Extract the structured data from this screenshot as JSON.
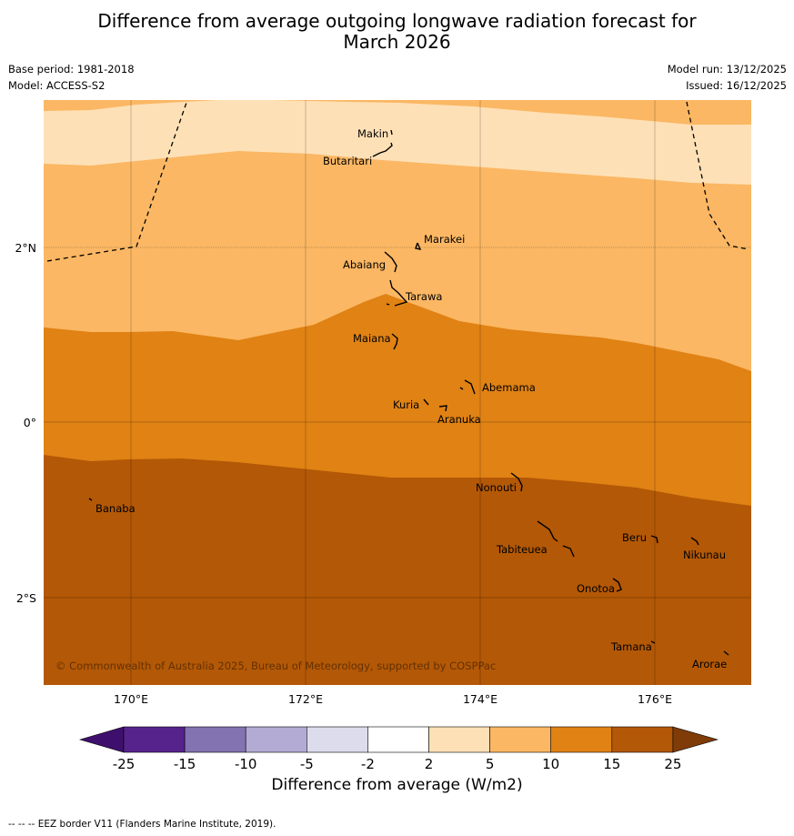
{
  "title_line1": "Difference from average outgoing longwave radiation forecast for",
  "title_line2": "March 2026",
  "base_period": "Base period: 1981-2018",
  "model": "Model: ACCESS-S2",
  "model_run": "Model run: 13/12/2025",
  "issued": "Issued: 16/12/2025",
  "copyright": "© Commonwealth of Australia 2025, Bureau of Meteorology, supported by COSPPac",
  "lon_labels": [
    "170°E",
    "172°E",
    "174°E",
    "176°E"
  ],
  "lat_labels": [
    "2°N",
    "0°",
    "2°S"
  ],
  "islands": [
    "Makin",
    "Butaritari",
    "Marakei",
    "Abaiang",
    "Tarawa",
    "Maiana",
    "Abemama",
    "Kuria",
    "Aranuka",
    "Nonouti",
    "Banaba",
    "Beru",
    "Tabiteuea",
    "Nikunau",
    "Onotoa",
    "Tamana",
    "Arorae"
  ],
  "colorbar": {
    "label": "Difference from average (W/m2)",
    "ticks": [
      "-25",
      "-15",
      "-10",
      "-5",
      "-2",
      "2",
      "5",
      "10",
      "15",
      "25"
    ],
    "colors": [
      "#3f0f6e",
      "#56238d",
      "#8373b0",
      "#b3abd3",
      "#dcdcec",
      "#ffffff",
      "#fee0b6",
      "#fbb763",
      "#e08214",
      "#b35806",
      "#7f3b08"
    ]
  },
  "footnote": "--  --  -- EEZ border V11 (Flanders Marine Institute, 2019)."
}
